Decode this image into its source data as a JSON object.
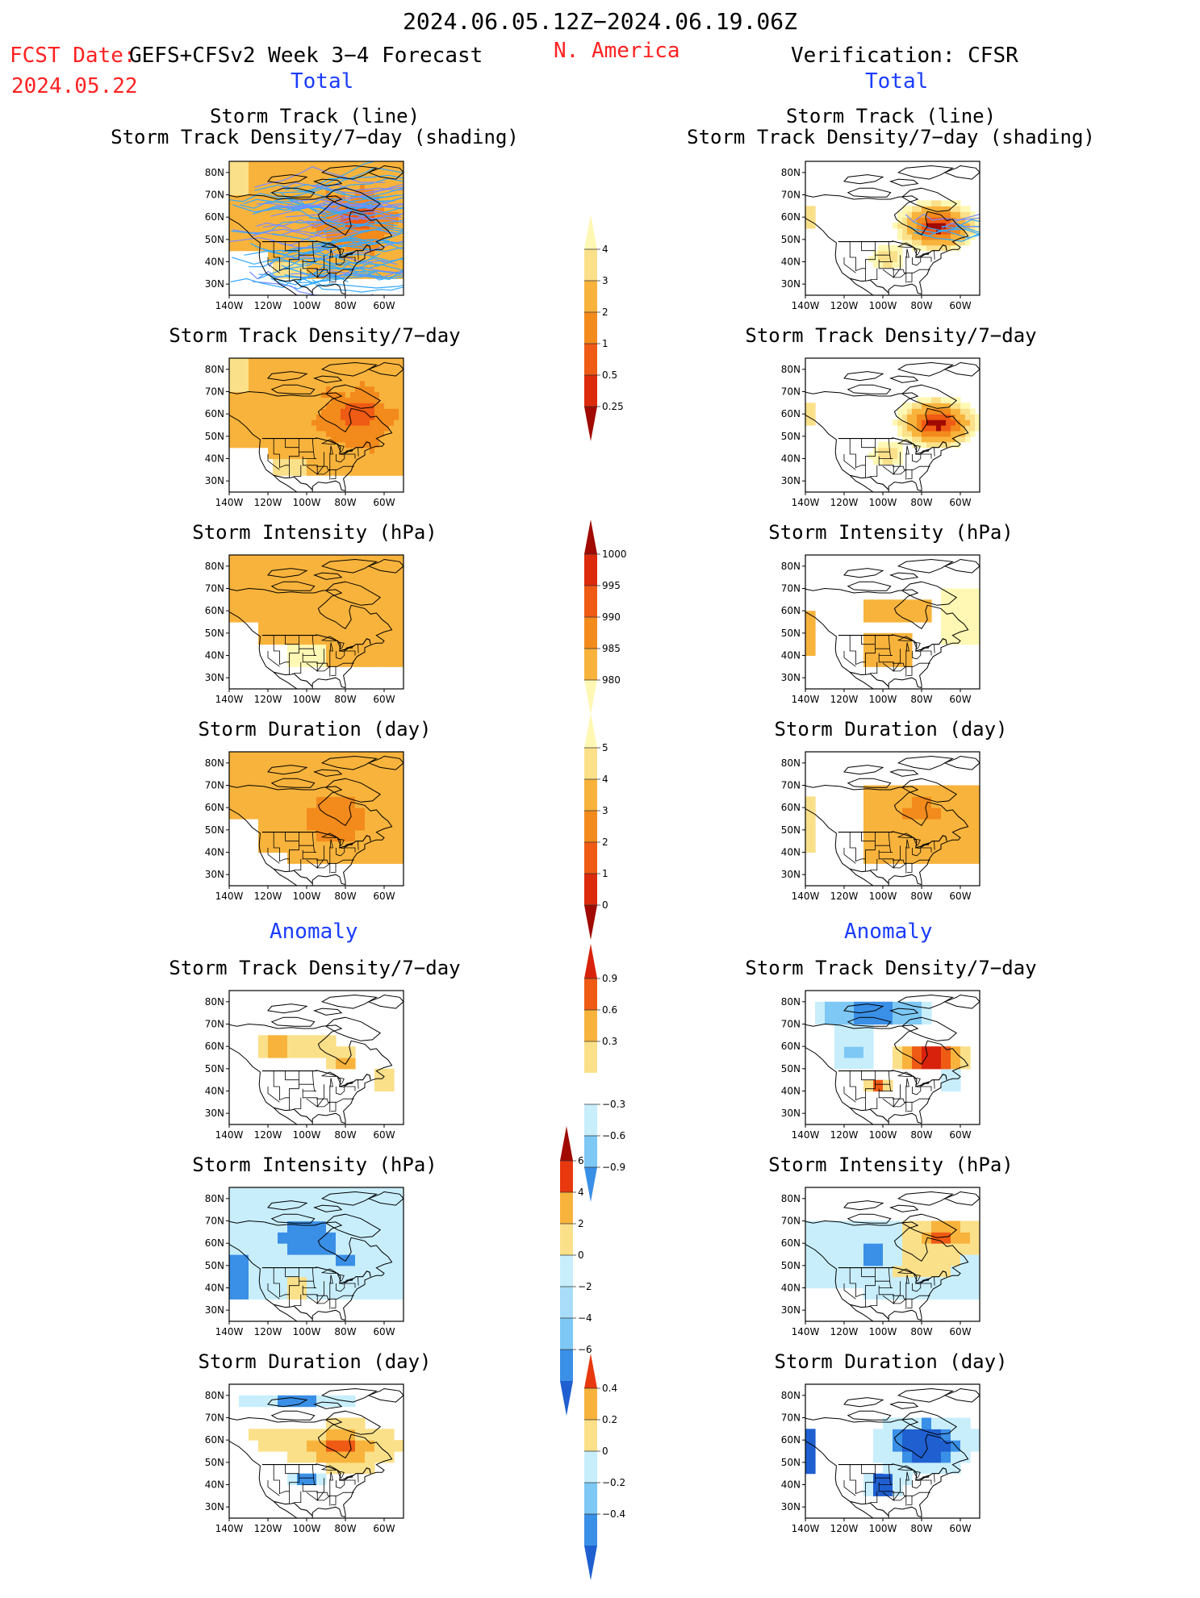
{
  "header": {
    "period": "2024.06.05.12Z−2024.06.19.06Z",
    "fcst_label": "FCST Date:",
    "fcst_date": "2024.05.22",
    "model": "GEFS+CFSv2 Week 3−4 Forecast",
    "region": "N. America",
    "verification": "Verification: CFSR",
    "total_left": "Total",
    "total_right": "Total",
    "anomaly_left": "Anomaly",
    "anomaly_right": "Anomaly"
  },
  "axes": {
    "lat_labels": [
      "80N",
      "70N",
      "60N",
      "50N",
      "40N",
      "30N"
    ],
    "lon_labels": [
      "140W",
      "120W",
      "100W",
      "80W",
      "60W"
    ]
  },
  "panels": {
    "track1": "Storm Track (line)",
    "track2": "Storm Track Density/7−day (shading)",
    "density": "Storm Track Density/7−day",
    "intensity": "Storm Intensity (hPa)",
    "duration": "Storm Duration (day)"
  },
  "colorbars": {
    "density_total": [
      "4",
      "3",
      "2",
      "1",
      "0.5",
      "0.25"
    ],
    "intensity_total": [
      "1000",
      "995",
      "990",
      "985",
      "980"
    ],
    "duration_total": [
      "5",
      "4",
      "3",
      "2",
      "1",
      "0"
    ],
    "density_anom": [
      "0.9",
      "0.6",
      "0.3",
      "−0.3",
      "−0.6",
      "−0.9"
    ],
    "intensity_anom": [
      "6",
      "4",
      "2",
      "0",
      "−2",
      "−4",
      "−6"
    ],
    "duration_anom": [
      "0.4",
      "0.2",
      "0",
      "−0.2",
      "−0.4"
    ]
  },
  "colors": {
    "header_red": "#ff2222",
    "header_blue": "#1a3cff",
    "total_scale": [
      "#fff8b4",
      "#fbe08a",
      "#f8b33c",
      "#f38a1c",
      "#ef5a14",
      "#dc2a0c",
      "#a00a00"
    ],
    "anom_warm": [
      "#fbe08a",
      "#f8b33c",
      "#ef5a14"
    ],
    "anom_cool": [
      "#c8eefc",
      "#7dc8f5",
      "#3a8fe6",
      "#1f5fd0"
    ]
  }
}
